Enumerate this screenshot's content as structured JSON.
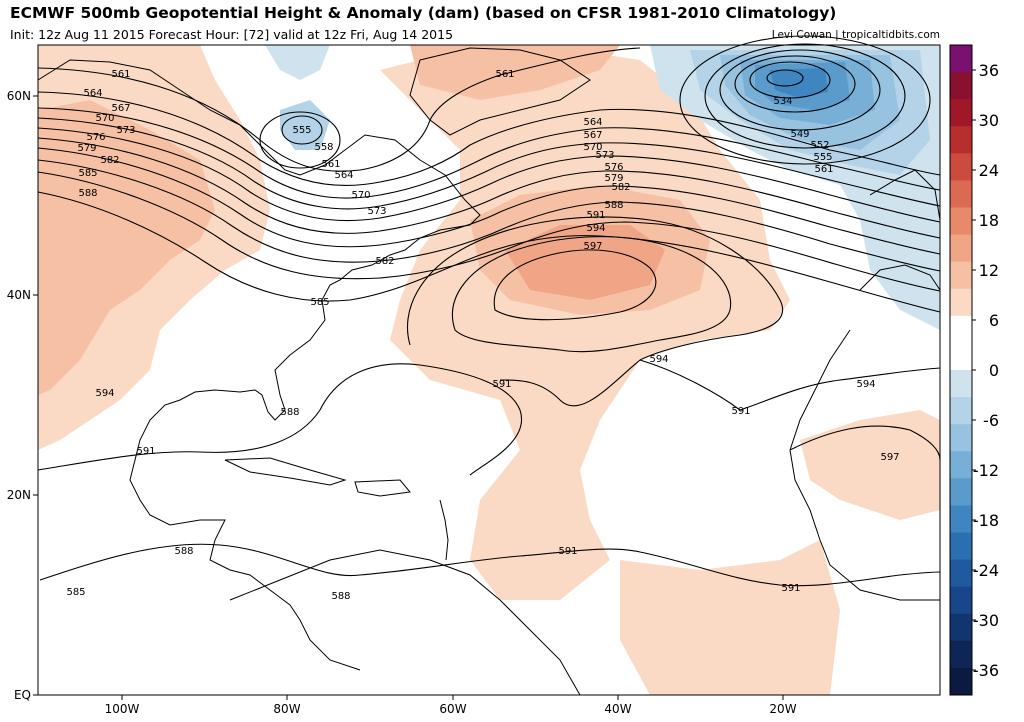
{
  "title": "ECMWF 500mb Geopotential Height & Anomaly (dam) (based on CFSR 1981-2010 Climatology)",
  "subtitle": "Init: 12z Aug 11 2015   Forecast Hour: [72]   valid at 12z Fri, Aug 14 2015",
  "credit": "Levi Cowan | tropicaltidbits.com",
  "lat_labels": [
    "60N",
    "40N",
    "20N",
    "EQ"
  ],
  "lon_labels": [
    "100W",
    "80W",
    "60W",
    "40W",
    "20W"
  ],
  "colorbar": {
    "tick_labels": [
      "36",
      "30",
      "24",
      "18",
      "12",
      "6",
      "0",
      "-6",
      "-12",
      "-18",
      "-24",
      "-30",
      "-36"
    ],
    "colors": [
      "#7a1070",
      "#8a1030",
      "#a01828",
      "#b82e2e",
      "#cc4a3e",
      "#dc6a52",
      "#e88a6a",
      "#f0a686",
      "#f6c0a4",
      "#fadac4",
      "#ffffff",
      "#ffffff",
      "#cfe3ef",
      "#b4d3e8",
      "#97c2e0",
      "#78afd6",
      "#5b9bcb",
      "#3f85bf",
      "#2c6fb0",
      "#1f599e",
      "#17468a",
      "#12346f",
      "#0e2555",
      "#0a1a40"
    ]
  },
  "contour_labels": [
    {
      "text": "561"
    },
    {
      "text": "564"
    },
    {
      "text": "567"
    },
    {
      "text": "570"
    },
    {
      "text": "573"
    },
    {
      "text": "576"
    },
    {
      "text": "579"
    },
    {
      "text": "582"
    },
    {
      "text": "585"
    },
    {
      "text": "588"
    },
    {
      "text": "555"
    },
    {
      "text": "558"
    },
    {
      "text": "561"
    },
    {
      "text": "564"
    },
    {
      "text": "570"
    },
    {
      "text": "573"
    },
    {
      "text": "582"
    },
    {
      "text": "585"
    },
    {
      "text": "588"
    },
    {
      "text": "594"
    },
    {
      "text": "591"
    },
    {
      "text": "588"
    },
    {
      "text": "585"
    },
    {
      "text": "588"
    },
    {
      "text": "561"
    },
    {
      "text": "564"
    },
    {
      "text": "567"
    },
    {
      "text": "570"
    },
    {
      "text": "573"
    },
    {
      "text": "576"
    },
    {
      "text": "579"
    },
    {
      "text": "582"
    },
    {
      "text": "588"
    },
    {
      "text": "591"
    },
    {
      "text": "594"
    },
    {
      "text": "597"
    },
    {
      "text": "594"
    },
    {
      "text": "591"
    },
    {
      "text": "591"
    },
    {
      "text": "534"
    },
    {
      "text": "549"
    },
    {
      "text": "552"
    },
    {
      "text": "555"
    },
    {
      "text": "561"
    },
    {
      "text": "594"
    },
    {
      "text": "597"
    },
    {
      "text": "591"
    },
    {
      "text": "591"
    }
  ]
}
